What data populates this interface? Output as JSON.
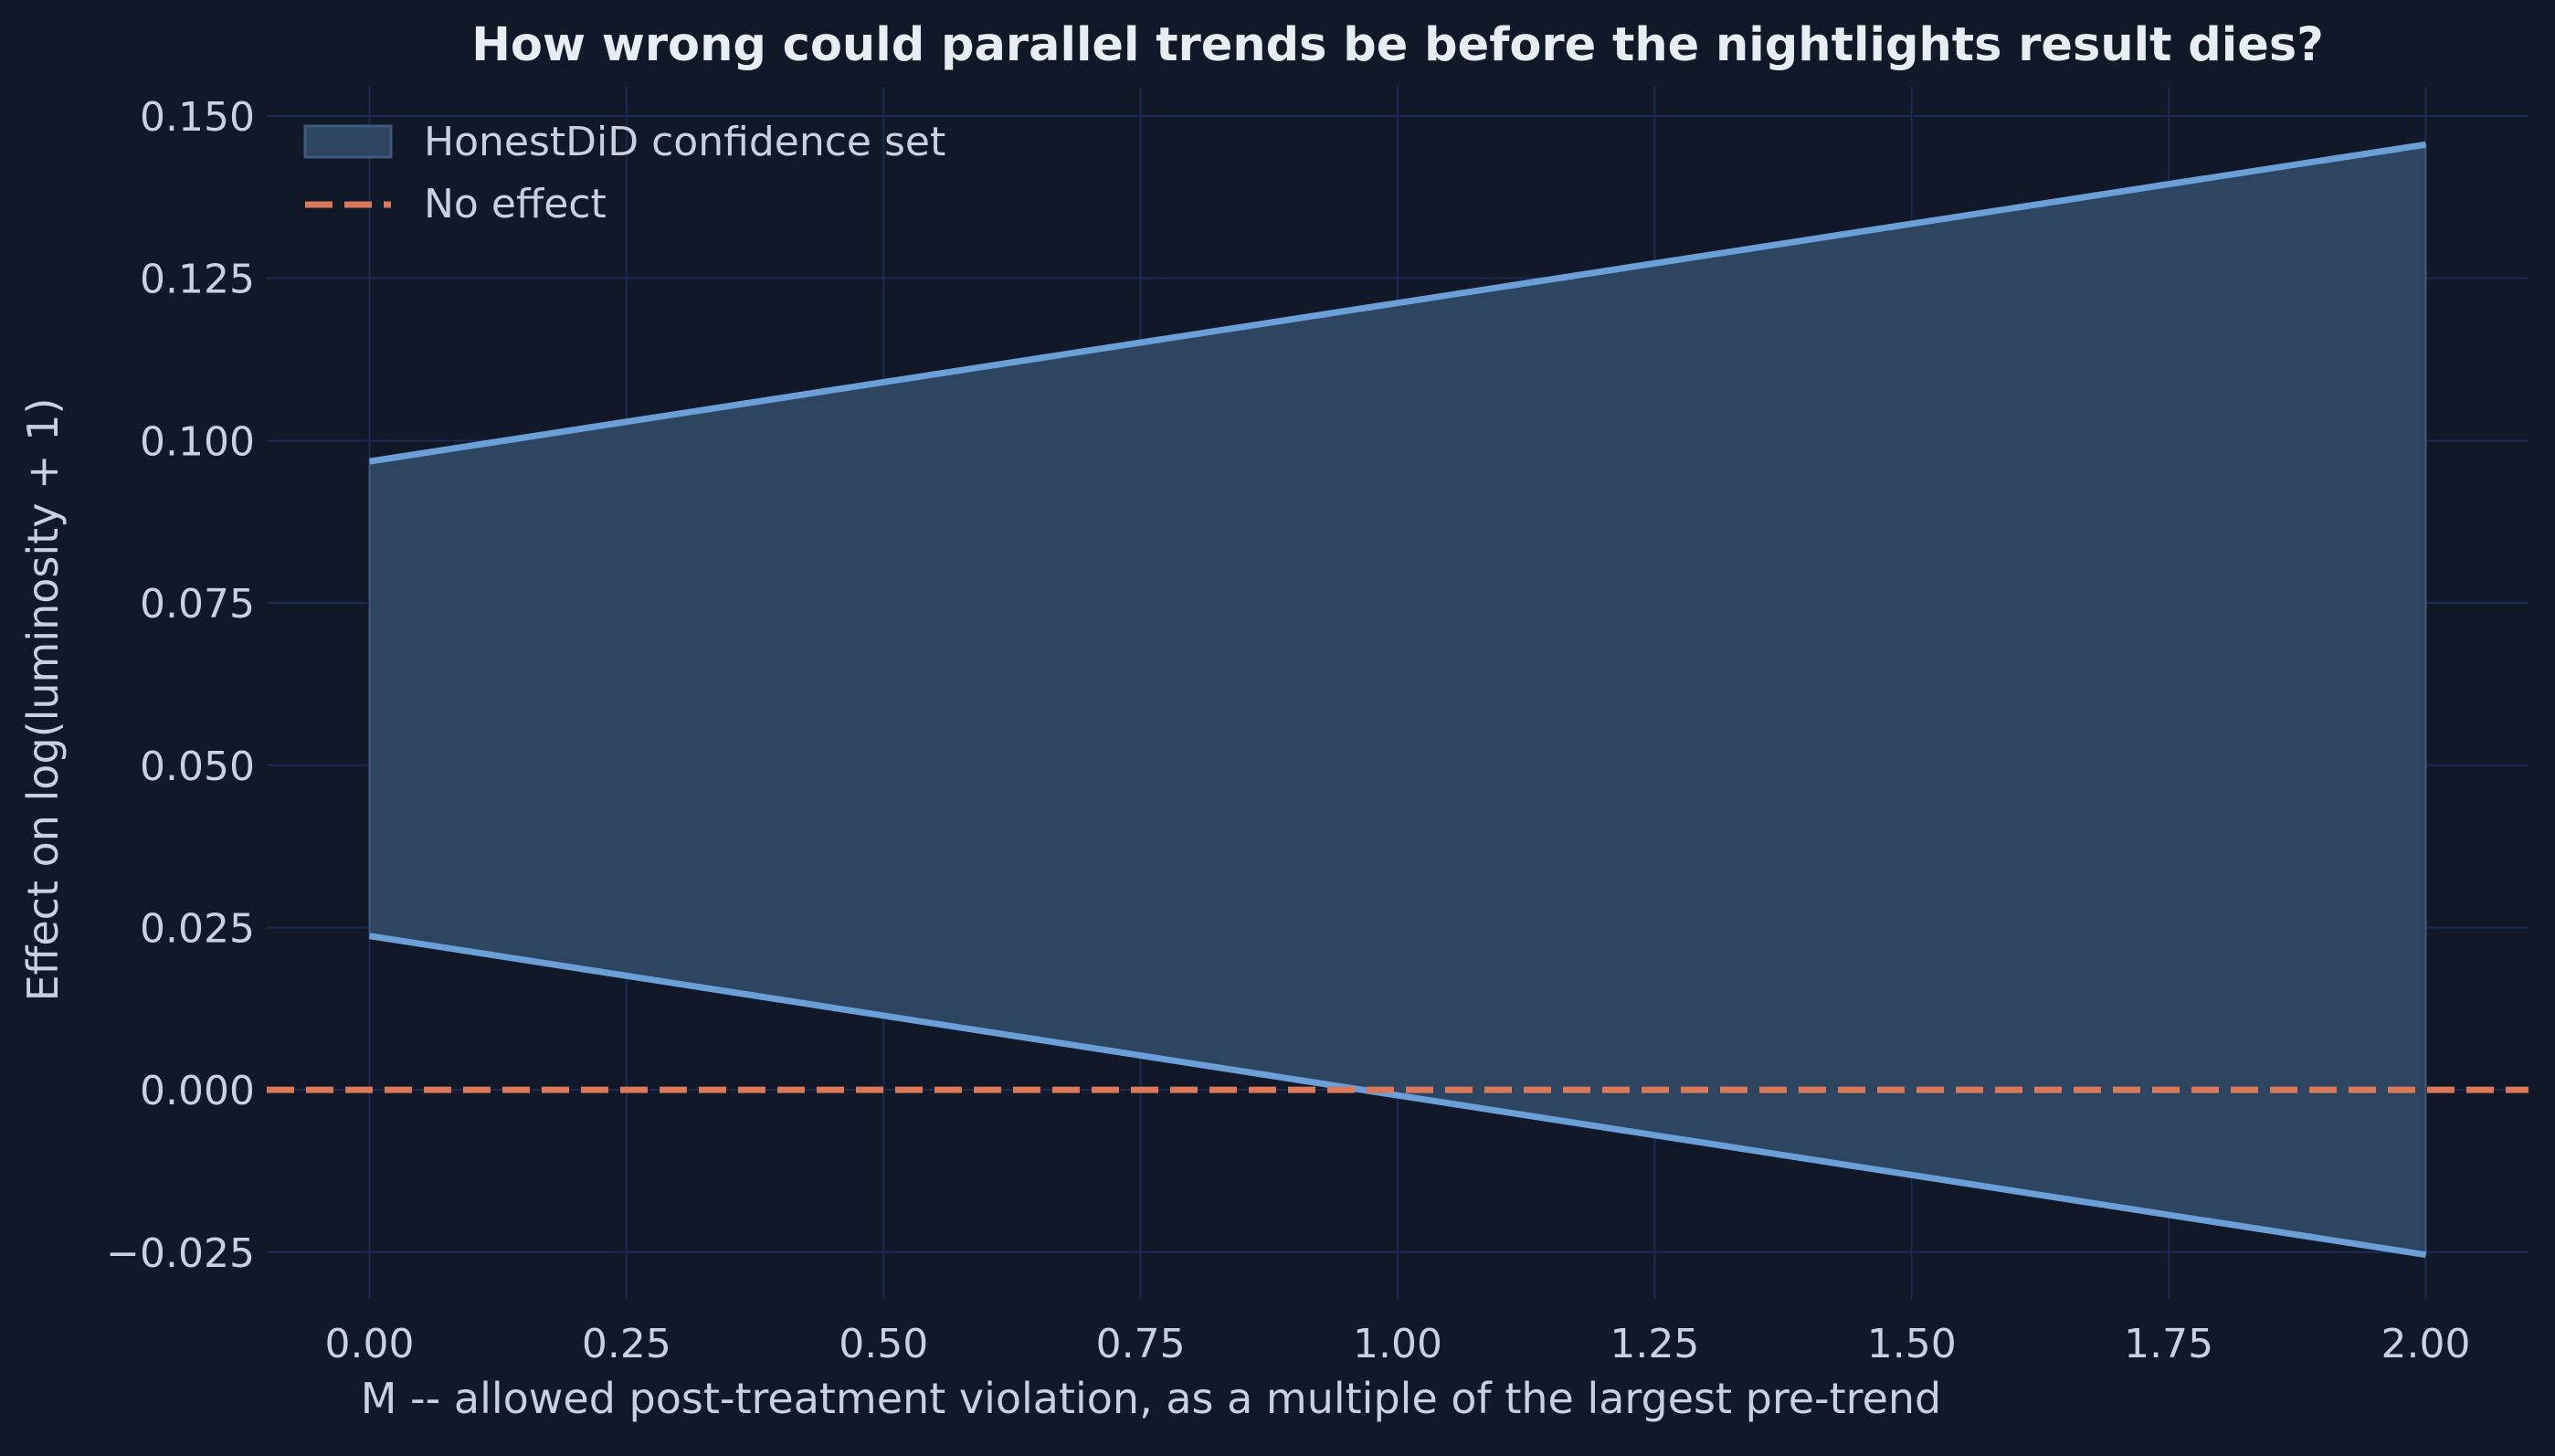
{
  "chart_data": {
    "type": "area",
    "title": "How wrong could parallel trends be before the nightlights result dies?",
    "xlabel": "M -- allowed post-treatment violation, as a multiple of the largest pre-trend",
    "ylabel": "Effect on log(luminosity + 1)",
    "xlim": [
      -0.1,
      2.1
    ],
    "ylim": [
      -0.0322,
      0.1545
    ],
    "x_ticks": [
      0.0,
      0.25,
      0.5,
      0.75,
      1.0,
      1.25,
      1.5,
      1.75,
      2.0
    ],
    "x_tick_labels": [
      "0.00",
      "0.25",
      "0.50",
      "0.75",
      "1.00",
      "1.25",
      "1.50",
      "1.75",
      "2.00"
    ],
    "y_ticks": [
      -0.025,
      0.0,
      0.025,
      0.05,
      0.075,
      0.1,
      0.125,
      0.15
    ],
    "y_tick_labels": [
      "−0.025",
      "0.000",
      "0.025",
      "0.050",
      "0.075",
      "0.100",
      "0.125",
      "0.150"
    ],
    "grid": true,
    "legend_position": "top-left",
    "series": [
      {
        "name": "HonestDiD confidence set",
        "kind": "band",
        "x": [
          0.0,
          2.0
        ],
        "lower": [
          0.0237,
          -0.0254
        ],
        "upper": [
          0.0968,
          0.1456
        ],
        "fill_color": "#2e4562",
        "line_color": "#6a9fd8"
      },
      {
        "name": "No effect",
        "kind": "hline",
        "y": 0.0,
        "color": "#d9795a",
        "dash": "dashed"
      }
    ],
    "colors": {
      "background": "#111827",
      "grid": "#1c2a55",
      "text": "#c9d1e0",
      "title": "#e8ecf3"
    }
  }
}
